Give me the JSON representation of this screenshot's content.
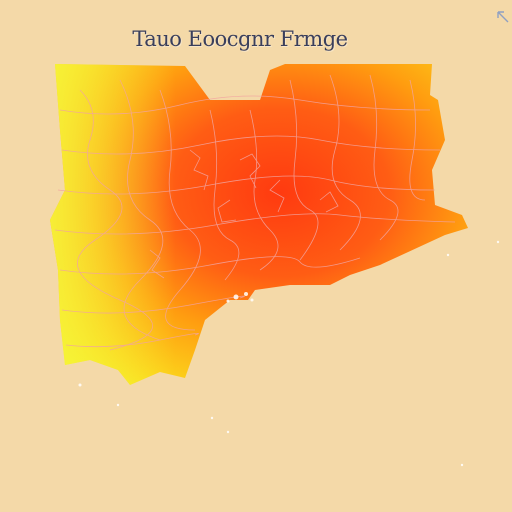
{
  "map": {
    "title": "Tauo Eoocgnr Frmge",
    "colors": {
      "background": "#f4d9a8",
      "ramp_low": "#f5f326",
      "ramp_mid": "#ff9d10",
      "ramp_high": "#ff3a10",
      "boundary_lines": "#f2a4a0",
      "title_text": "#3a3f5c"
    },
    "labels": {
      "top_left": "",
      "right_upper": "",
      "right_middle": "",
      "right_lower": "",
      "bottom_center": "",
      "bottom_lower": ""
    },
    "icons": [
      "north-arrow-icon"
    ]
  }
}
